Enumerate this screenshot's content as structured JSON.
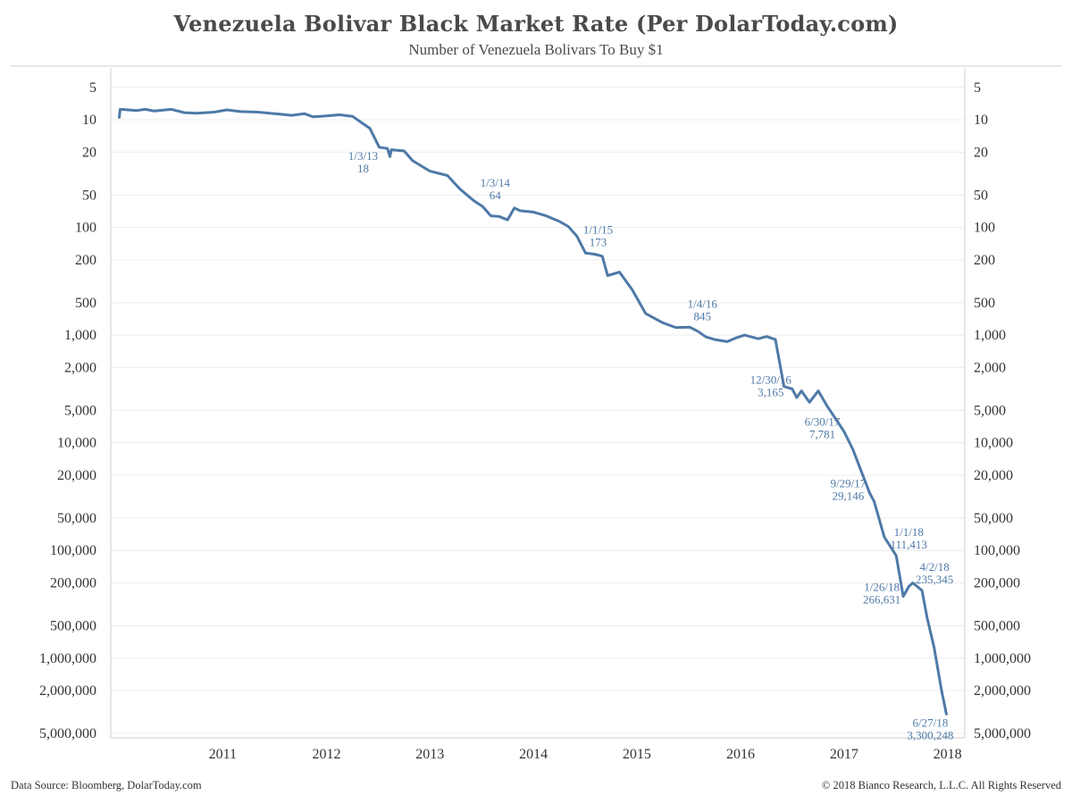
{
  "header": {
    "title": "Venezuela Bolivar Black Market Rate (Per DolarToday.com)",
    "subtitle": "Number of Venezuela Bolivars To Buy $1"
  },
  "footer": {
    "source": "Data Source: Bloomberg, DolarToday.com",
    "copyright": "© 2018 Bianco Research, L.L.C. All Rights Reserved"
  },
  "chart_data": {
    "type": "line",
    "title": "Venezuela Bolivar Black Market Rate (Per DolarToday.com)",
    "subtitle": "Number of Venezuela Bolivars To Buy $1",
    "y_scale": "log",
    "y_inverted": true,
    "ylim": [
      3.3,
      5500000
    ],
    "xlim": [
      "2010-06-01",
      "2018-08-31"
    ],
    "grid": true,
    "line_color": "#4e79a7",
    "y_ticks": [
      {
        "value": 5,
        "label": "5"
      },
      {
        "value": 10,
        "label": "10"
      },
      {
        "value": 20,
        "label": "20"
      },
      {
        "value": 50,
        "label": "50"
      },
      {
        "value": 100,
        "label": "100"
      },
      {
        "value": 200,
        "label": "200"
      },
      {
        "value": 500,
        "label": "500"
      },
      {
        "value": 1000,
        "label": "1,000"
      },
      {
        "value": 2000,
        "label": "2,000"
      },
      {
        "value": 5000,
        "label": "5,000"
      },
      {
        "value": 10000,
        "label": "10,000"
      },
      {
        "value": 20000,
        "label": "20,000"
      },
      {
        "value": 50000,
        "label": "50,000"
      },
      {
        "value": 100000,
        "label": "100,000"
      },
      {
        "value": 200000,
        "label": "200,000"
      },
      {
        "value": 500000,
        "label": "500,000"
      },
      {
        "value": 1000000,
        "label": "1,000,000"
      },
      {
        "value": 2000000,
        "label": "2,000,000"
      },
      {
        "value": 5000000,
        "label": "5,000,000"
      }
    ],
    "x_ticks": [
      {
        "value": "2011-07-01",
        "label": "2011"
      },
      {
        "value": "2012-07-01",
        "label": "2012"
      },
      {
        "value": "2013-07-01",
        "label": "2013"
      },
      {
        "value": "2014-07-01",
        "label": "2014"
      },
      {
        "value": "2015-07-01",
        "label": "2015"
      },
      {
        "value": "2016-07-01",
        "label": "2016"
      },
      {
        "value": "2017-07-01",
        "label": "2017"
      },
      {
        "value": "2018-07-01",
        "label": "2018"
      }
    ],
    "series": [
      {
        "points": [
          [
            "2010-07-01",
            9.5
          ],
          [
            "2010-07-04",
            8.0
          ],
          [
            "2010-08-01",
            8.1
          ],
          [
            "2010-09-01",
            8.2
          ],
          [
            "2010-10-01",
            8.0
          ],
          [
            "2010-11-01",
            8.3
          ],
          [
            "2011-01-01",
            8.0
          ],
          [
            "2011-02-15",
            8.6
          ],
          [
            "2011-04-01",
            8.7
          ],
          [
            "2011-06-01",
            8.5
          ],
          [
            "2011-07-15",
            8.1
          ],
          [
            "2011-09-01",
            8.4
          ],
          [
            "2011-11-01",
            8.5
          ],
          [
            "2012-01-01",
            8.8
          ],
          [
            "2012-03-01",
            9.1
          ],
          [
            "2012-04-15",
            8.8
          ],
          [
            "2012-05-15",
            9.4
          ],
          [
            "2012-07-01",
            9.2
          ],
          [
            "2012-08-15",
            9.0
          ],
          [
            "2012-10-01",
            9.3
          ],
          [
            "2012-11-01",
            10.6
          ],
          [
            "2012-12-01",
            12.0
          ],
          [
            "2013-01-03",
            18
          ],
          [
            "2013-02-01",
            18.5
          ],
          [
            "2013-02-10",
            22.0
          ],
          [
            "2013-02-15",
            19.0
          ],
          [
            "2013-04-01",
            19.5
          ],
          [
            "2013-05-01",
            24
          ],
          [
            "2013-07-01",
            30
          ],
          [
            "2013-09-01",
            33
          ],
          [
            "2013-10-15",
            44
          ],
          [
            "2013-12-01",
            56
          ],
          [
            "2014-01-03",
            64
          ],
          [
            "2014-02-01",
            78
          ],
          [
            "2014-03-01",
            79
          ],
          [
            "2014-04-01",
            85
          ],
          [
            "2014-04-25",
            66
          ],
          [
            "2014-05-15",
            70
          ],
          [
            "2014-07-01",
            72
          ],
          [
            "2014-08-15",
            78
          ],
          [
            "2014-10-01",
            88
          ],
          [
            "2014-11-01",
            98
          ],
          [
            "2014-12-01",
            120
          ],
          [
            "2015-01-01",
            173
          ],
          [
            "2015-02-01",
            177
          ],
          [
            "2015-03-01",
            185
          ],
          [
            "2015-03-20",
            280
          ],
          [
            "2015-05-01",
            260
          ],
          [
            "2015-06-15",
            380
          ],
          [
            "2015-08-01",
            630
          ],
          [
            "2015-10-01",
            770
          ],
          [
            "2015-11-15",
            850
          ],
          [
            "2016-01-04",
            845
          ],
          [
            "2016-02-01",
            920
          ],
          [
            "2016-03-01",
            1040
          ],
          [
            "2016-04-01",
            1100
          ],
          [
            "2016-05-15",
            1150
          ],
          [
            "2016-06-15",
            1060
          ],
          [
            "2016-07-15",
            1000
          ],
          [
            "2016-09-01",
            1080
          ],
          [
            "2016-10-01",
            1030
          ],
          [
            "2016-11-01",
            1100
          ],
          [
            "2016-12-01",
            3000
          ],
          [
            "2016-12-30",
            3165
          ],
          [
            "2017-01-15",
            3800
          ],
          [
            "2017-02-01",
            3300
          ],
          [
            "2017-03-01",
            4200
          ],
          [
            "2017-04-01",
            3300
          ],
          [
            "2017-05-01",
            4500
          ],
          [
            "2017-06-30",
            7781
          ],
          [
            "2017-08-01",
            11500
          ],
          [
            "2017-09-29",
            29146
          ],
          [
            "2017-10-15",
            35000
          ],
          [
            "2017-11-20",
            75000
          ],
          [
            "2018-01-01",
            111413
          ],
          [
            "2018-01-26",
            266631
          ],
          [
            "2018-02-15",
            215000
          ],
          [
            "2018-03-01",
            200000
          ],
          [
            "2018-04-02",
            235345
          ],
          [
            "2018-04-20",
            420000
          ],
          [
            "2018-05-15",
            800000
          ],
          [
            "2018-06-10",
            2000000
          ],
          [
            "2018-06-27",
            3300248
          ]
        ]
      }
    ],
    "annotations": [
      {
        "date_label": "1/3/13",
        "value_label": "18",
        "x": "2013-01-03",
        "y": 18,
        "anchor": "below-left"
      },
      {
        "date_label": "1/3/14",
        "value_label": "64",
        "x": "2014-01-03",
        "y": 64,
        "anchor": "above-right"
      },
      {
        "date_label": "1/1/15",
        "value_label": "173",
        "x": "2015-01-01",
        "y": 173,
        "anchor": "above-right"
      },
      {
        "date_label": "1/4/16",
        "value_label": "845",
        "x": "2016-01-04",
        "y": 845,
        "anchor": "above-right"
      },
      {
        "date_label": "12/30/16",
        "value_label": "3,165",
        "x": "2016-12-30",
        "y": 3165,
        "anchor": "left"
      },
      {
        "date_label": "6/30/17",
        "value_label": "7,781",
        "x": "2017-06-30",
        "y": 7781,
        "anchor": "left"
      },
      {
        "date_label": "9/29/17",
        "value_label": "29,146",
        "x": "2017-09-29",
        "y": 29146,
        "anchor": "left"
      },
      {
        "date_label": "1/1/18",
        "value_label": "111,413",
        "x": "2018-01-01",
        "y": 111413,
        "anchor": "above-right"
      },
      {
        "date_label": "1/26/18",
        "value_label": "266,631",
        "x": "2018-01-26",
        "y": 266631,
        "anchor": "left"
      },
      {
        "date_label": "4/2/18",
        "value_label": "235,345",
        "x": "2018-04-02",
        "y": 235345,
        "anchor": "above-right"
      },
      {
        "date_label": "6/27/18",
        "value_label": "3,300,248",
        "x": "2018-06-27",
        "y": 3300248,
        "anchor": "below-left"
      }
    ]
  }
}
